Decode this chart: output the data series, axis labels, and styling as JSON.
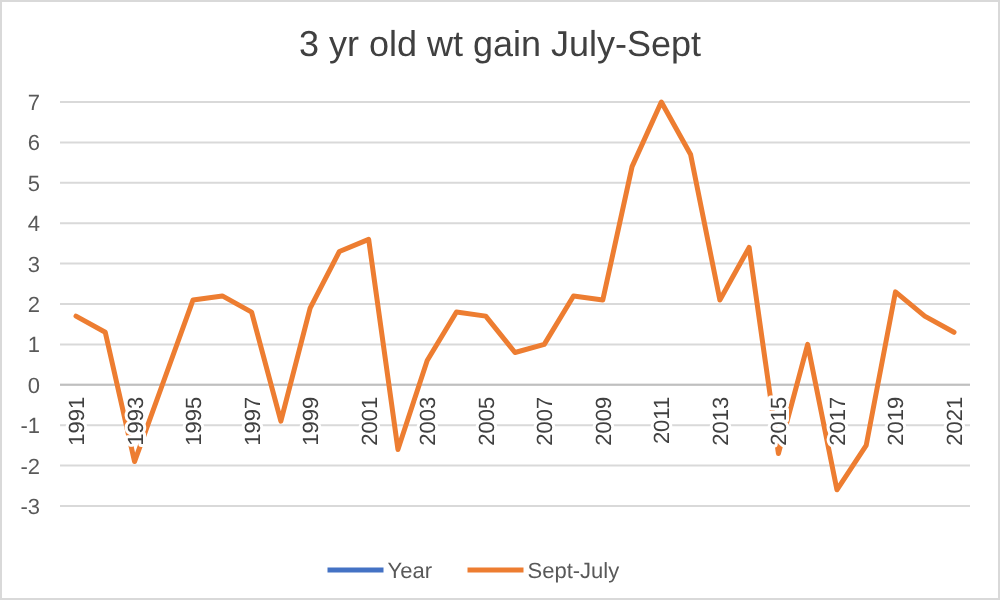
{
  "chart_data": {
    "type": "line",
    "title": "3 yr old wt gain July-Sept",
    "categories": [
      "1991",
      null,
      "1993",
      null,
      "1995",
      null,
      "1997",
      null,
      "1999",
      null,
      "2001",
      null,
      "2003",
      null,
      "2005",
      null,
      "2007",
      null,
      "2009",
      null,
      "2011",
      null,
      "2013",
      null,
      "2015",
      null,
      "2017",
      null,
      "2019",
      null,
      "2021"
    ],
    "series": [
      {
        "name": "Year",
        "color": "#4472c4",
        "values": [
          null,
          null,
          null,
          null,
          null,
          null,
          null,
          null,
          null,
          null,
          null,
          null,
          null,
          null,
          null,
          null,
          null,
          null,
          null,
          null,
          null,
          null,
          null,
          null,
          null,
          null,
          null,
          null,
          null,
          null,
          null
        ]
      },
      {
        "name": "Sept-July",
        "color": "#ed7d31",
        "values": [
          1.7,
          1.3,
          -1.9,
          0.1,
          2.1,
          2.2,
          1.8,
          -0.9,
          1.9,
          3.3,
          3.6,
          -1.6,
          0.6,
          1.8,
          1.7,
          0.8,
          1.0,
          2.2,
          2.1,
          5.4,
          7.0,
          5.7,
          2.1,
          3.4,
          -1.7,
          1.0,
          -2.6,
          -1.5,
          2.3,
          1.7,
          1.3
        ]
      }
    ],
    "ylim": [
      -3,
      7
    ],
    "yticks": [
      -3,
      -2,
      -1,
      0,
      1,
      2,
      3,
      4,
      5,
      6,
      7
    ],
    "grid": "y",
    "legend": "bottom",
    "marker": "none",
    "line_style": "solid"
  }
}
